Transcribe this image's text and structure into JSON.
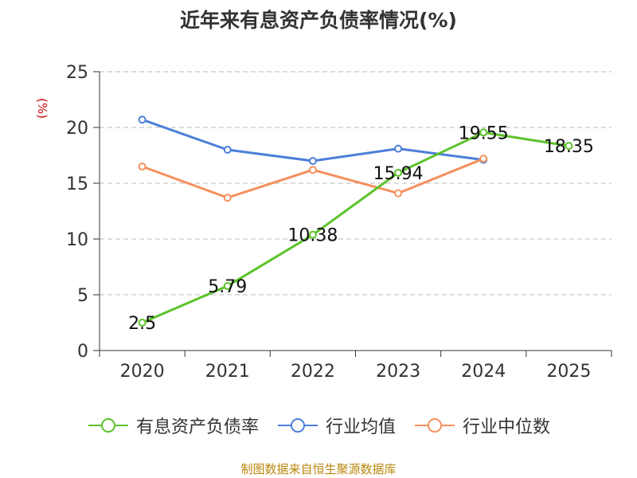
{
  "chart_data": {
    "type": "line",
    "title": "近年来有息资产负债率情况(%)",
    "ylabel": "(%)",
    "xlabel": "",
    "categories": [
      "2020",
      "2021",
      "2022",
      "2023",
      "2024",
      "2025"
    ],
    "ylim": [
      0,
      25
    ],
    "yticks": [
      0,
      5,
      10,
      15,
      20,
      25
    ],
    "grid": true,
    "legend_position": "bottom",
    "series": [
      {
        "name": "有息资产负债率",
        "color": "#5cc32a",
        "values": [
          2.5,
          5.79,
          10.38,
          15.94,
          19.55,
          18.35
        ],
        "labels": [
          "2.5",
          "5.79",
          "10.38",
          "15.94",
          "19.55",
          "18.35"
        ]
      },
      {
        "name": "行业均值",
        "color": "#4c7fd8",
        "values": [
          20.7,
          18.0,
          17.0,
          18.1,
          17.1,
          null
        ]
      },
      {
        "name": "行业中位数",
        "color": "#f4915e",
        "values": [
          16.5,
          13.7,
          16.2,
          14.1,
          17.2,
          null
        ]
      }
    ]
  },
  "source": "制图数据来自恒生聚源数据库"
}
